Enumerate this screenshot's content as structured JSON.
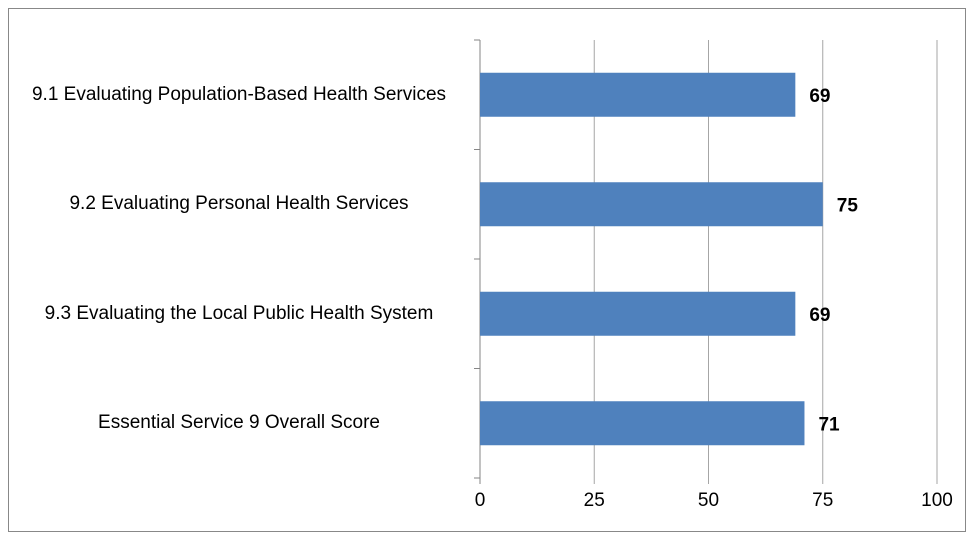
{
  "chart_data": {
    "type": "barh",
    "categories": [
      "9.1 Evaluating Population-Based Health Services",
      "9.2 Evaluating Personal Health Services",
      "9.3 Evaluating the Local Public Health System",
      "Essential Service 9 Overall Score"
    ],
    "values": [
      69,
      75,
      69,
      71
    ],
    "color": "#4f81bd",
    "xlim": [
      0,
      100
    ],
    "xticks": [
      0,
      25,
      50,
      75,
      100
    ],
    "grid": true
  }
}
